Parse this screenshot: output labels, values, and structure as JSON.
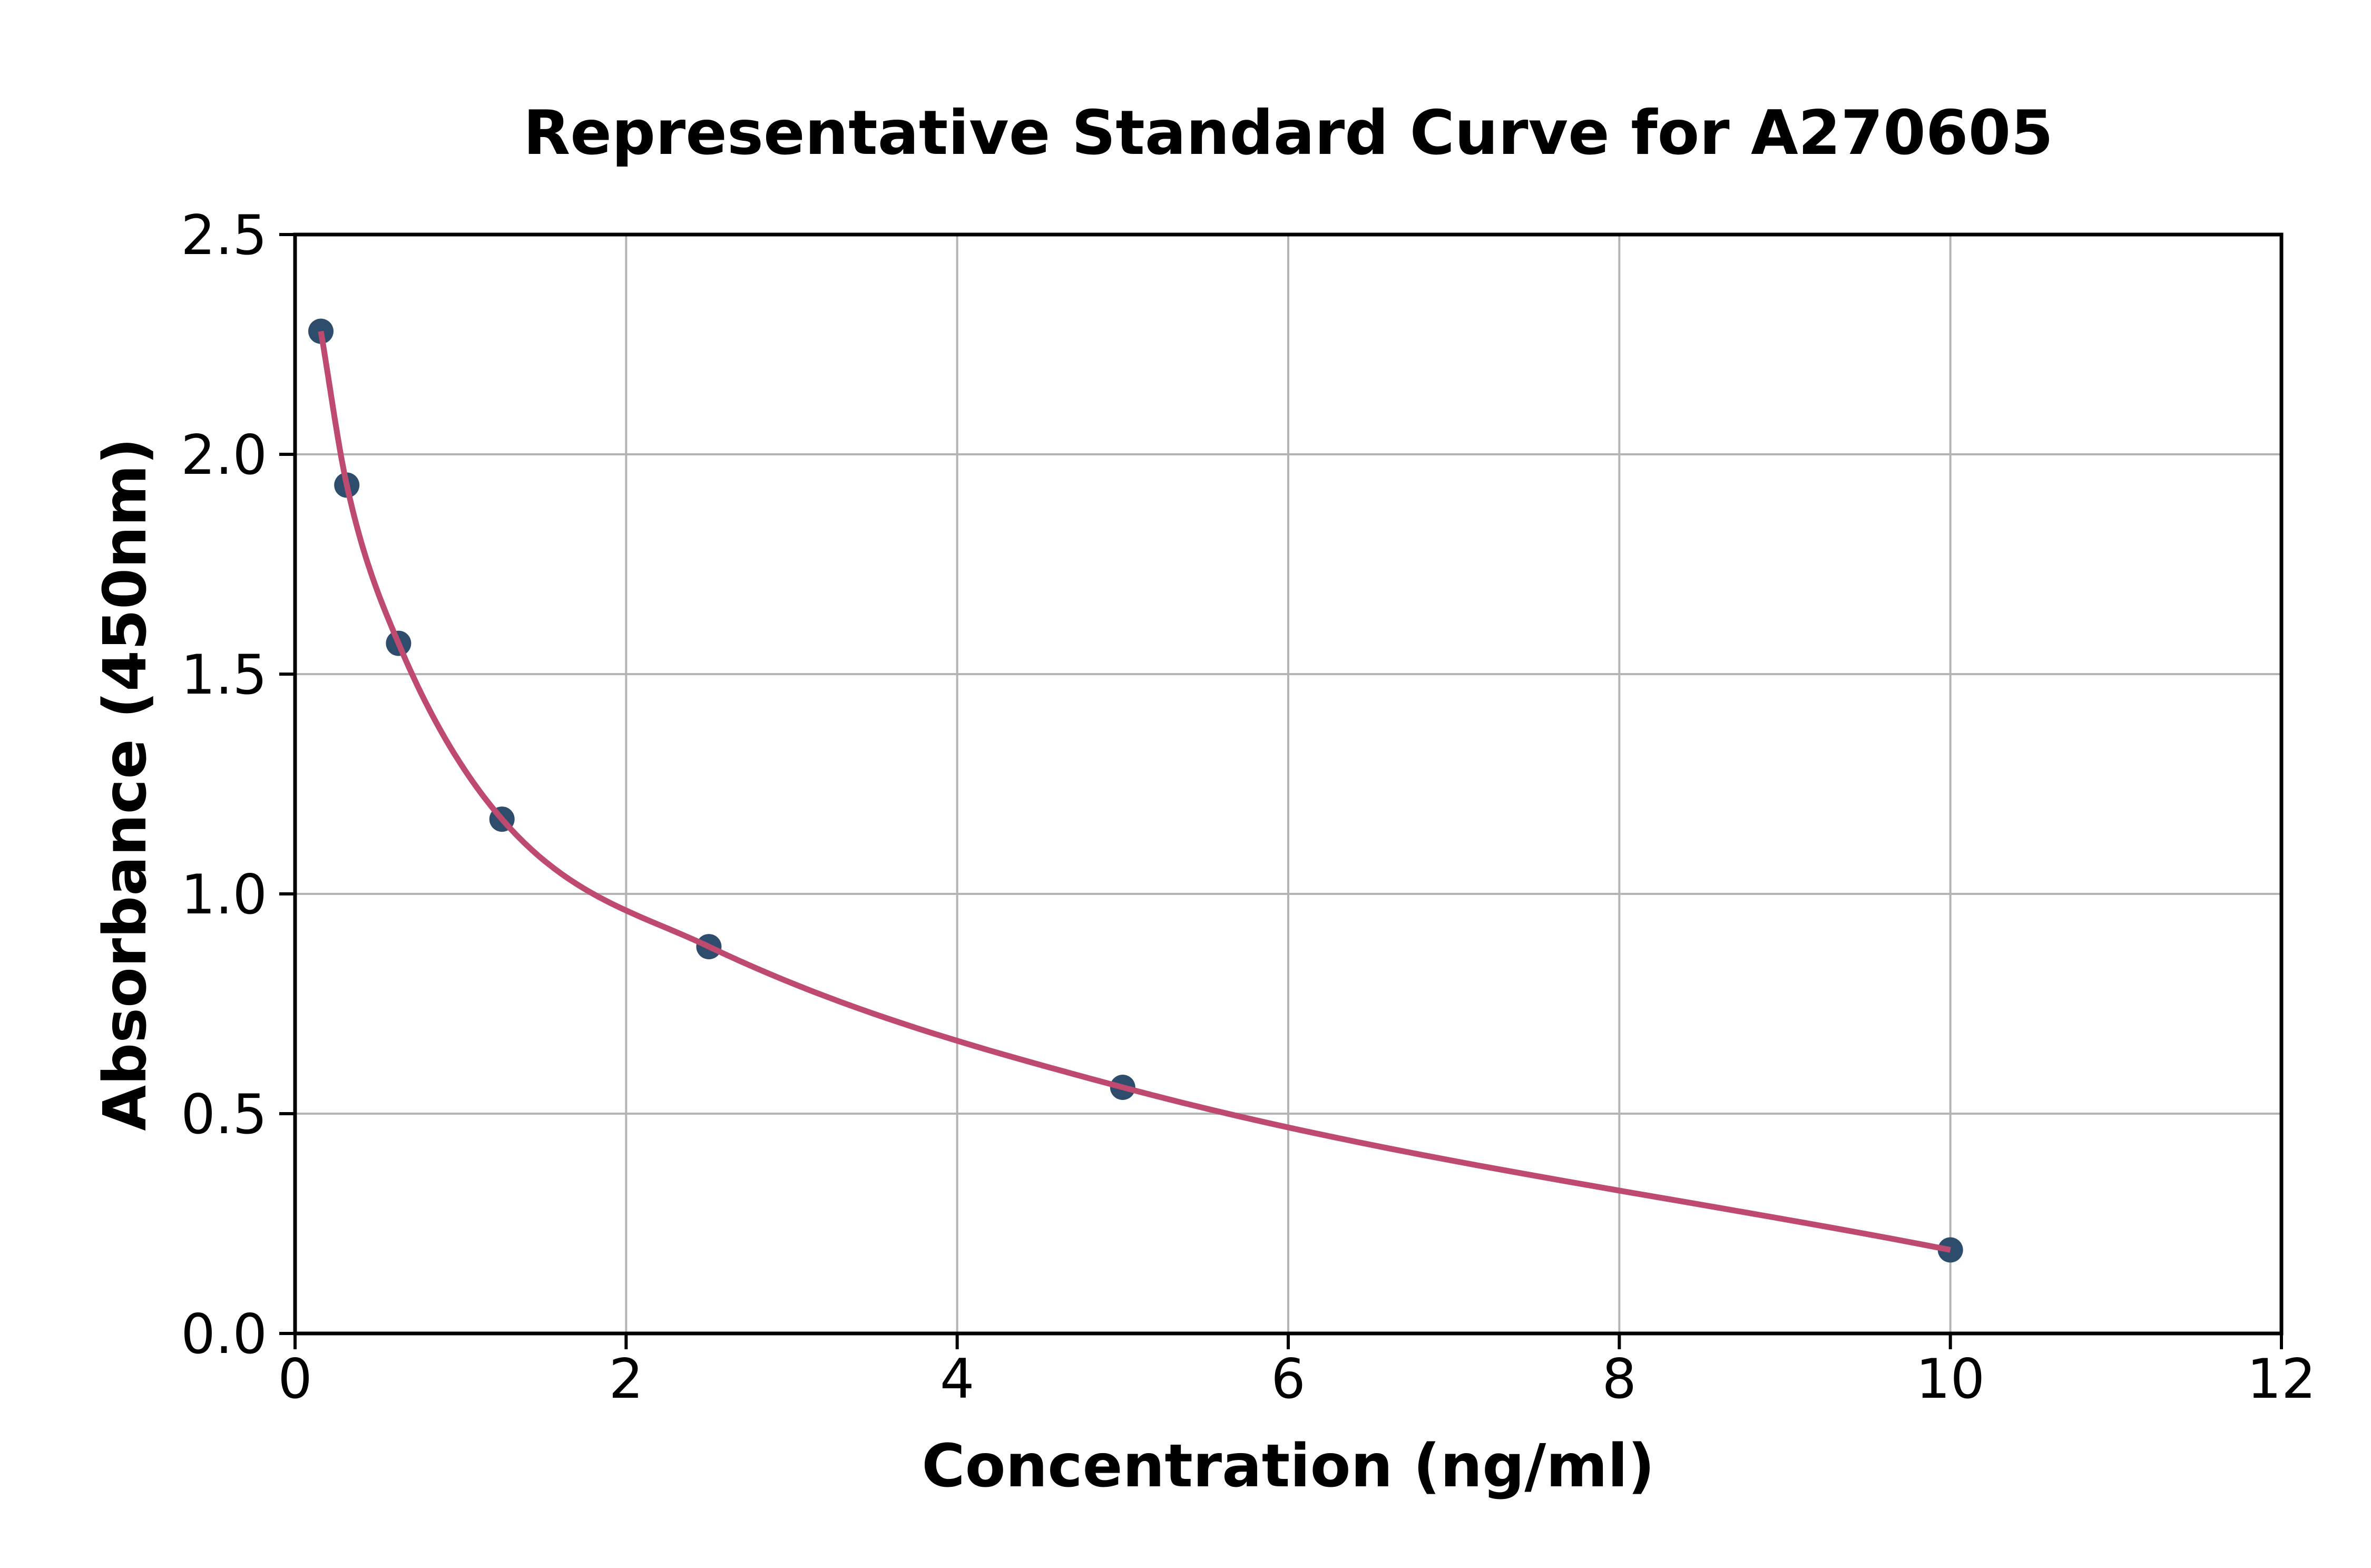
{
  "figure": {
    "background_color": "#ffffff"
  },
  "chart_data": {
    "type": "scatter",
    "title": "Representative Standard Curve for A270605",
    "xlabel": "Concentration (ng/ml)",
    "ylabel": "Absorbance (450nm)",
    "xlim": [
      0,
      12
    ],
    "ylim": [
      0.0,
      2.5
    ],
    "xticks": [
      0,
      2,
      4,
      6,
      8,
      10,
      12
    ],
    "xtick_labels": [
      "0",
      "2",
      "4",
      "6",
      "8",
      "10",
      "12"
    ],
    "yticks": [
      0.0,
      0.5,
      1.0,
      1.5,
      2.0,
      2.5
    ],
    "ytick_labels": [
      "0.0",
      "0.5",
      "1.0",
      "1.5",
      "2.0",
      "2.5"
    ],
    "grid": true,
    "legend_position": "none",
    "series": [
      {
        "name": "standard-points",
        "type": "scatter",
        "marker_color": "#2e4d6d",
        "points": [
          {
            "x": 0.156,
            "y": 2.28
          },
          {
            "x": 0.3125,
            "y": 1.93
          },
          {
            "x": 0.625,
            "y": 1.57
          },
          {
            "x": 1.25,
            "y": 1.17
          },
          {
            "x": 2.5,
            "y": 0.88
          },
          {
            "x": 5,
            "y": 0.56
          },
          {
            "x": 10,
            "y": 0.19
          }
        ]
      },
      {
        "name": "fit-curve",
        "type": "line",
        "line_color": "#bf4a6f",
        "x_start": 0.156,
        "x_end": 10,
        "description": "smooth fitted curve passing through the standard points"
      }
    ],
    "grid_color": "#b4b4b4",
    "axis_color": "#000000",
    "text_color": "#000000"
  }
}
